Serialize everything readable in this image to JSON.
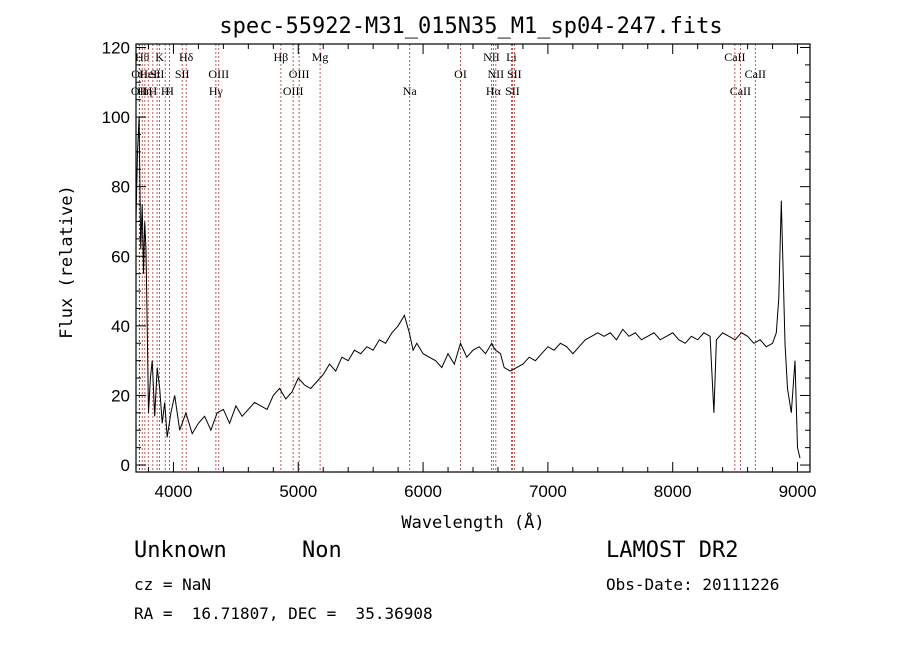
{
  "chart_data": {
    "type": "line",
    "title": "spec-55922-M31_015N35_M1_sp04-247.fits",
    "xlabel": "Wavelength (Å)",
    "ylabel": "Flux (relative)",
    "xlim": [
      3700,
      9100
    ],
    "ylim": [
      -2,
      121
    ],
    "xticks": [
      4000,
      5000,
      6000,
      7000,
      8000,
      9000
    ],
    "yticks": [
      0,
      20,
      40,
      60,
      80,
      100,
      120
    ],
    "grid": false,
    "line_color": "#000000",
    "marker_color": "#b03030",
    "series": [
      {
        "x": [
          3700,
          3712,
          3725,
          3738,
          3750,
          3760,
          3770,
          3780,
          3790,
          3800,
          3815,
          3830,
          3850,
          3870,
          3890,
          3910,
          3930,
          3950,
          3980,
          4010,
          4050,
          4100,
          4150,
          4200,
          4250,
          4300,
          4350,
          4400,
          4450,
          4500,
          4550,
          4600,
          4650,
          4700,
          4750,
          4800,
          4850,
          4900,
          4950,
          5000,
          5050,
          5100,
          5150,
          5200,
          5250,
          5300,
          5350,
          5400,
          5450,
          5500,
          5550,
          5600,
          5650,
          5700,
          5750,
          5800,
          5850,
          5890,
          5920,
          5950,
          6000,
          6050,
          6100,
          6150,
          6200,
          6250,
          6300,
          6350,
          6400,
          6450,
          6500,
          6550,
          6563,
          6580,
          6620,
          6650,
          6700,
          6750,
          6800,
          6850,
          6900,
          6950,
          7000,
          7050,
          7100,
          7150,
          7200,
          7250,
          7300,
          7350,
          7400,
          7450,
          7500,
          7550,
          7600,
          7650,
          7700,
          7750,
          7800,
          7850,
          7900,
          7950,
          8000,
          8050,
          8100,
          8150,
          8200,
          8250,
          8300,
          8330,
          8350,
          8400,
          8450,
          8500,
          8550,
          8600,
          8650,
          8700,
          8750,
          8800,
          8830,
          8850,
          8870,
          8900,
          8920,
          8950,
          8980,
          9000,
          9020
        ],
        "y": [
          70,
          90,
          100,
          62,
          75,
          55,
          70,
          62,
          40,
          15,
          25,
          30,
          14,
          28,
          22,
          12,
          18,
          8,
          15,
          20,
          10,
          15,
          9,
          12,
          14,
          10,
          15,
          16,
          12,
          17,
          14,
          16,
          18,
          17,
          16,
          20,
          22,
          19,
          21,
          25,
          23,
          22,
          24,
          26,
          29,
          27,
          31,
          30,
          33,
          32,
          34,
          33,
          36,
          35,
          38,
          40,
          43,
          38,
          33,
          35,
          32,
          31,
          30,
          28,
          32,
          29,
          35,
          31,
          33,
          34,
          32,
          35,
          34,
          33,
          32,
          28,
          27,
          28,
          29,
          31,
          30,
          32,
          34,
          33,
          35,
          34,
          32,
          34,
          36,
          37,
          38,
          37,
          38,
          36,
          39,
          37,
          38,
          36,
          37,
          38,
          36,
          37,
          38,
          36,
          35,
          37,
          36,
          38,
          37,
          15,
          36,
          38,
          37,
          36,
          38,
          37,
          35,
          36,
          34,
          35,
          38,
          48,
          76,
          35,
          22,
          15,
          30,
          5,
          2
        ]
      }
    ],
    "line_markers": [
      {
        "wl": 3726,
        "label": "OII",
        "row": 2
      },
      {
        "wl": 3729,
        "label": "OII",
        "row": 1
      },
      {
        "wl": 3750,
        "label": "Hθ",
        "row": 0
      },
      {
        "wl": 3771,
        "label": "Hη",
        "row": 2
      },
      {
        "wl": 3798,
        "label": "HeI",
        "row": 1
      },
      {
        "wl": 3835,
        "label": "H",
        "row": 2
      },
      {
        "wl": 3869,
        "label": "SII",
        "row": 1
      },
      {
        "wl": 3889,
        "label": "K",
        "row": 0
      },
      {
        "wl": 3934,
        "label": "H",
        "row": 2
      },
      {
        "wl": 3969,
        "label": "H",
        "row": 2
      },
      {
        "wl": 4070,
        "label": "SII",
        "row": 1
      },
      {
        "wl": 4102,
        "label": "Hδ",
        "row": 0
      },
      {
        "wl": 4340,
        "label": "Hγ",
        "row": 2
      },
      {
        "wl": 4363,
        "label": "OIII",
        "row": 1
      },
      {
        "wl": 4861,
        "label": "Hβ",
        "row": 0
      },
      {
        "wl": 4959,
        "label": "OIII",
        "row": 2
      },
      {
        "wl": 5007,
        "label": "OIII",
        "row": 1
      },
      {
        "wl": 5175,
        "label": "Mg",
        "row": 0
      },
      {
        "wl": 5893,
        "label": "Na",
        "row": 2
      },
      {
        "wl": 6300,
        "label": "OI",
        "row": 1
      },
      {
        "wl": 6548,
        "label": "NII",
        "row": 0
      },
      {
        "wl": 6563,
        "label": "Hα",
        "row": 2
      },
      {
        "wl": 6583,
        "label": "NII",
        "row": 1
      },
      {
        "wl": 6708,
        "label": "Li",
        "row": 0
      },
      {
        "wl": 6716,
        "label": "SII",
        "row": 2
      },
      {
        "wl": 6731,
        "label": "SII",
        "row": 1
      },
      {
        "wl": 8498,
        "label": "CaII",
        "row": 0
      },
      {
        "wl": 8542,
        "label": "CaII",
        "row": 2
      },
      {
        "wl": 8662,
        "label": "CaII",
        "row": 1
      }
    ]
  },
  "info": {
    "object_class": "Unknown",
    "object_subclass": "Non",
    "survey": "LAMOST DR2",
    "cz": "cz = NaN",
    "obs_date": "Obs-Date: 20111226",
    "coords": "RA =  16.71807, DEC =  35.36908"
  }
}
